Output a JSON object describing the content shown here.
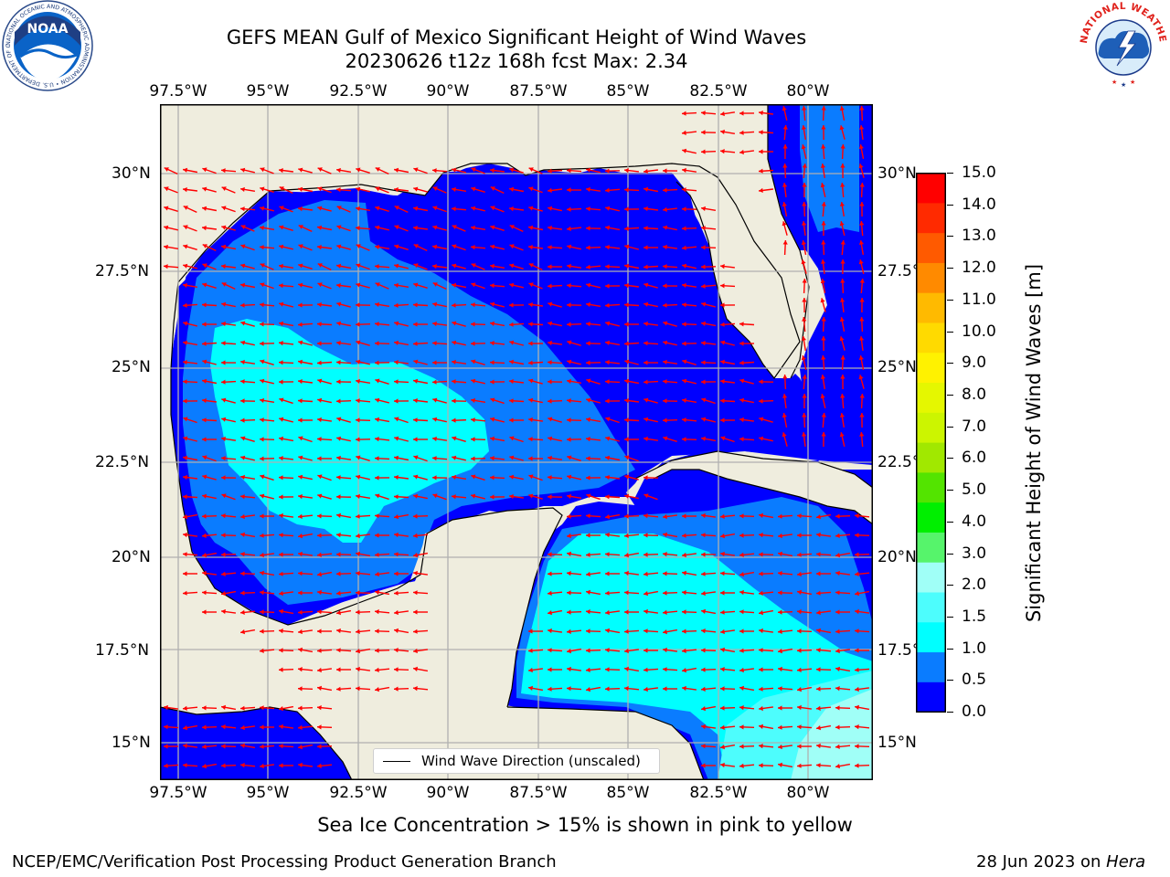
{
  "header": {
    "title_line1": "GEFS MEAN Gulf of Mexico Significant Height of Wind Waves",
    "title_line2": "20230626 t12z 168h fcst   Max: 2.34"
  },
  "logos": {
    "noaa_text": "NOAA",
    "noaa_ring_text": "NATIONAL OCEANIC AND ATMOSPHERIC ADMINISTRATION • U.S. DEPARTMENT OF COMMERCE",
    "nws_ring_text": "NATIONAL WEATHER SERVICE"
  },
  "map": {
    "lon_ticks": [
      "97.5°W",
      "95°W",
      "92.5°W",
      "90°W",
      "87.5°W",
      "85°W",
      "82.5°W",
      "80°W"
    ],
    "lat_ticks": [
      "30°N",
      "27.5°N",
      "25°N",
      "22.5°N",
      "20°N",
      "17.5°N",
      "15°N"
    ],
    "legend_label": "Wind Wave Direction (unscaled)",
    "colors": {
      "land": "#efedde",
      "band_0_0.5": "#0000ff",
      "band_0.5_1.0": "#0a7cff",
      "band_1.0_1.5": "#00ffff",
      "band_1.5_2.0": "#4dfdfd",
      "band_2.0_3.0": "#a0fff7",
      "arrow": "#ff0000",
      "grid": "#b0b0b0"
    }
  },
  "colorbar": {
    "title": "Significant Height of Wind Waves [m]",
    "labels": [
      "15.0",
      "14.0",
      "13.0",
      "12.0",
      "11.0",
      "10.0",
      "9.0",
      "8.0",
      "7.0",
      "6.0",
      "5.0",
      "4.0",
      "3.0",
      "2.0",
      "1.5",
      "1.0",
      "0.5",
      "0.0"
    ],
    "colors": [
      "#0000ff",
      "#0a7cff",
      "#00ffff",
      "#4dfdfd",
      "#a0fff7",
      "#56f46b",
      "#00ef00",
      "#53e400",
      "#a1e800",
      "#ccf500",
      "#e5f700",
      "#fff200",
      "#ffda00",
      "#ffba00",
      "#ff8a00",
      "#ff5a00",
      "#ff2a00",
      "#ff0000"
    ]
  },
  "notes": {
    "ice_note": "Sea Ice Concentration > 15% is shown in pink to yellow"
  },
  "footer": {
    "left": "NCEP/EMC/Verification Post Processing Product Generation Branch",
    "date": "28 Jun 2023",
    "on": " on ",
    "machine": "Hera"
  }
}
